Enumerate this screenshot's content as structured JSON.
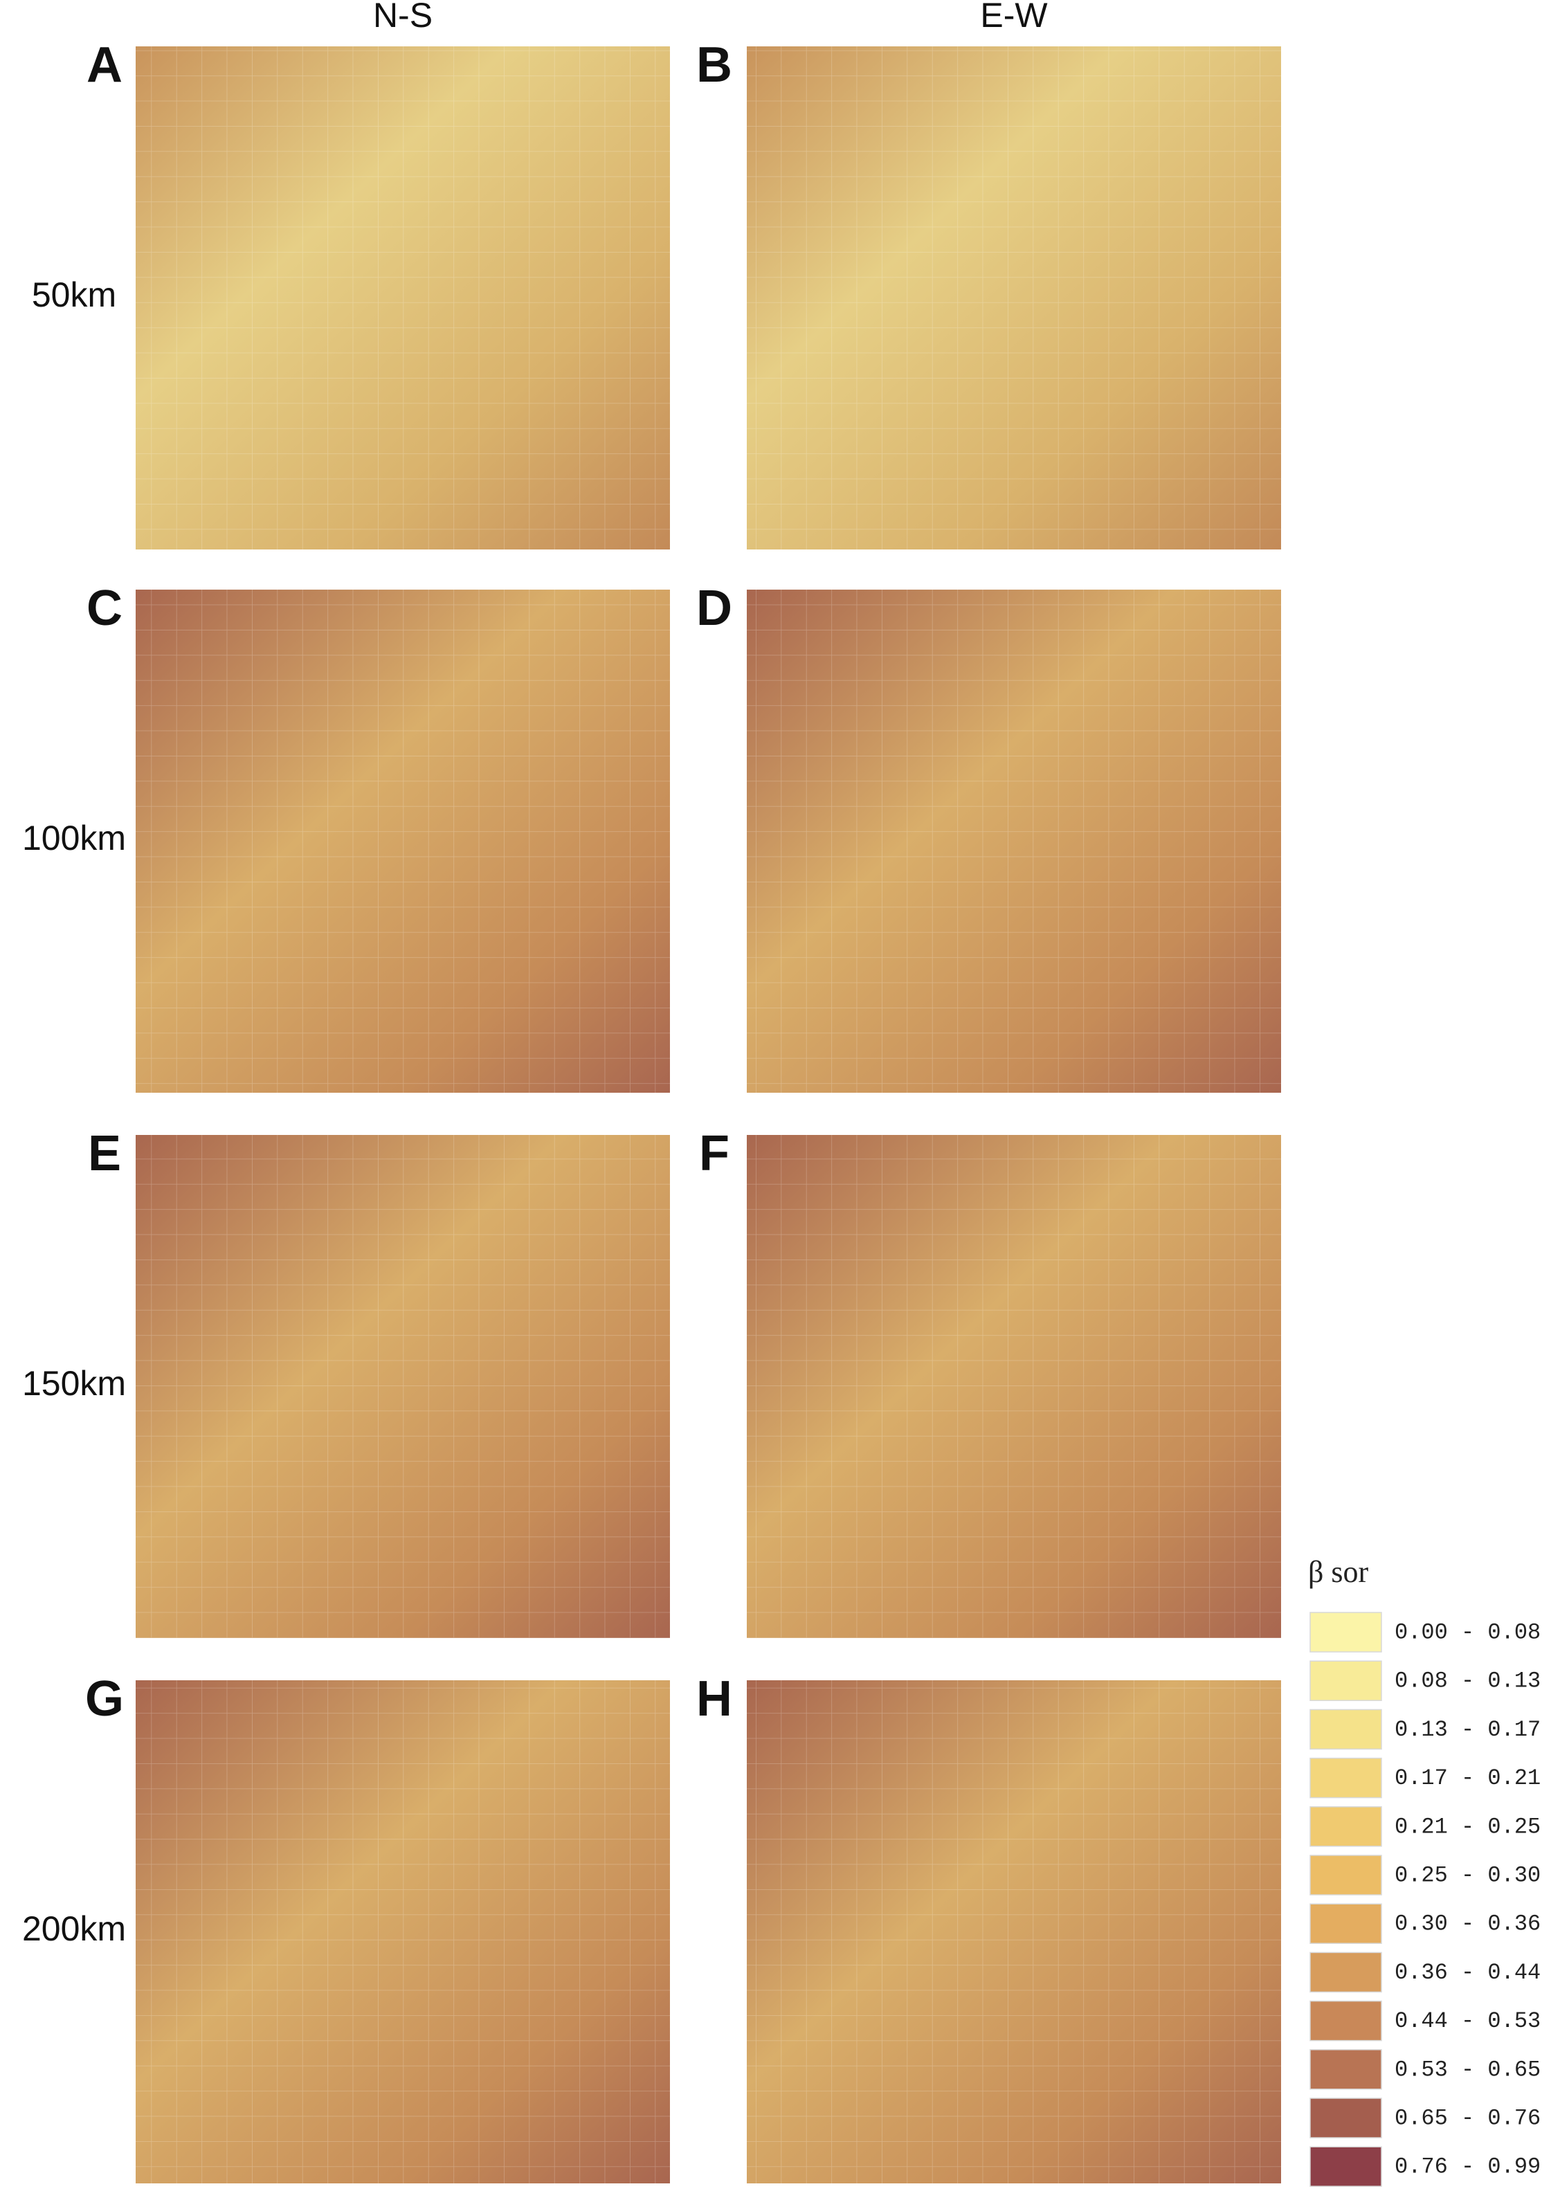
{
  "columns": [
    "N-S",
    "E-W"
  ],
  "rows": [
    "50km",
    "100km",
    "150km",
    "200km"
  ],
  "panels": [
    "A",
    "B",
    "C",
    "D",
    "E",
    "F",
    "G",
    "H"
  ],
  "legend": {
    "title": "β sor",
    "items": [
      {
        "label": "0.00 - 0.08",
        "color": "#fbf4a8"
      },
      {
        "label": "0.08 - 0.13",
        "color": "#f8eb98"
      },
      {
        "label": "0.13 - 0.17",
        "color": "#f5e28a"
      },
      {
        "label": "0.17 - 0.21",
        "color": "#f3d67c"
      },
      {
        "label": "0.21 - 0.25",
        "color": "#f0ca70"
      },
      {
        "label": "0.25 - 0.30",
        "color": "#ecbd66"
      },
      {
        "label": "0.30 - 0.36",
        "color": "#e4ad60"
      },
      {
        "label": "0.36 - 0.44",
        "color": "#d79c5c"
      },
      {
        "label": "0.44 - 0.53",
        "color": "#c98858"
      },
      {
        "label": "0.53 - 0.65",
        "color": "#b87454"
      },
      {
        "label": "0.65 - 0.76",
        "color": "#a45e4e"
      },
      {
        "label": "0.76 - 0.99",
        "color": "#8d3f48"
      }
    ]
  }
}
